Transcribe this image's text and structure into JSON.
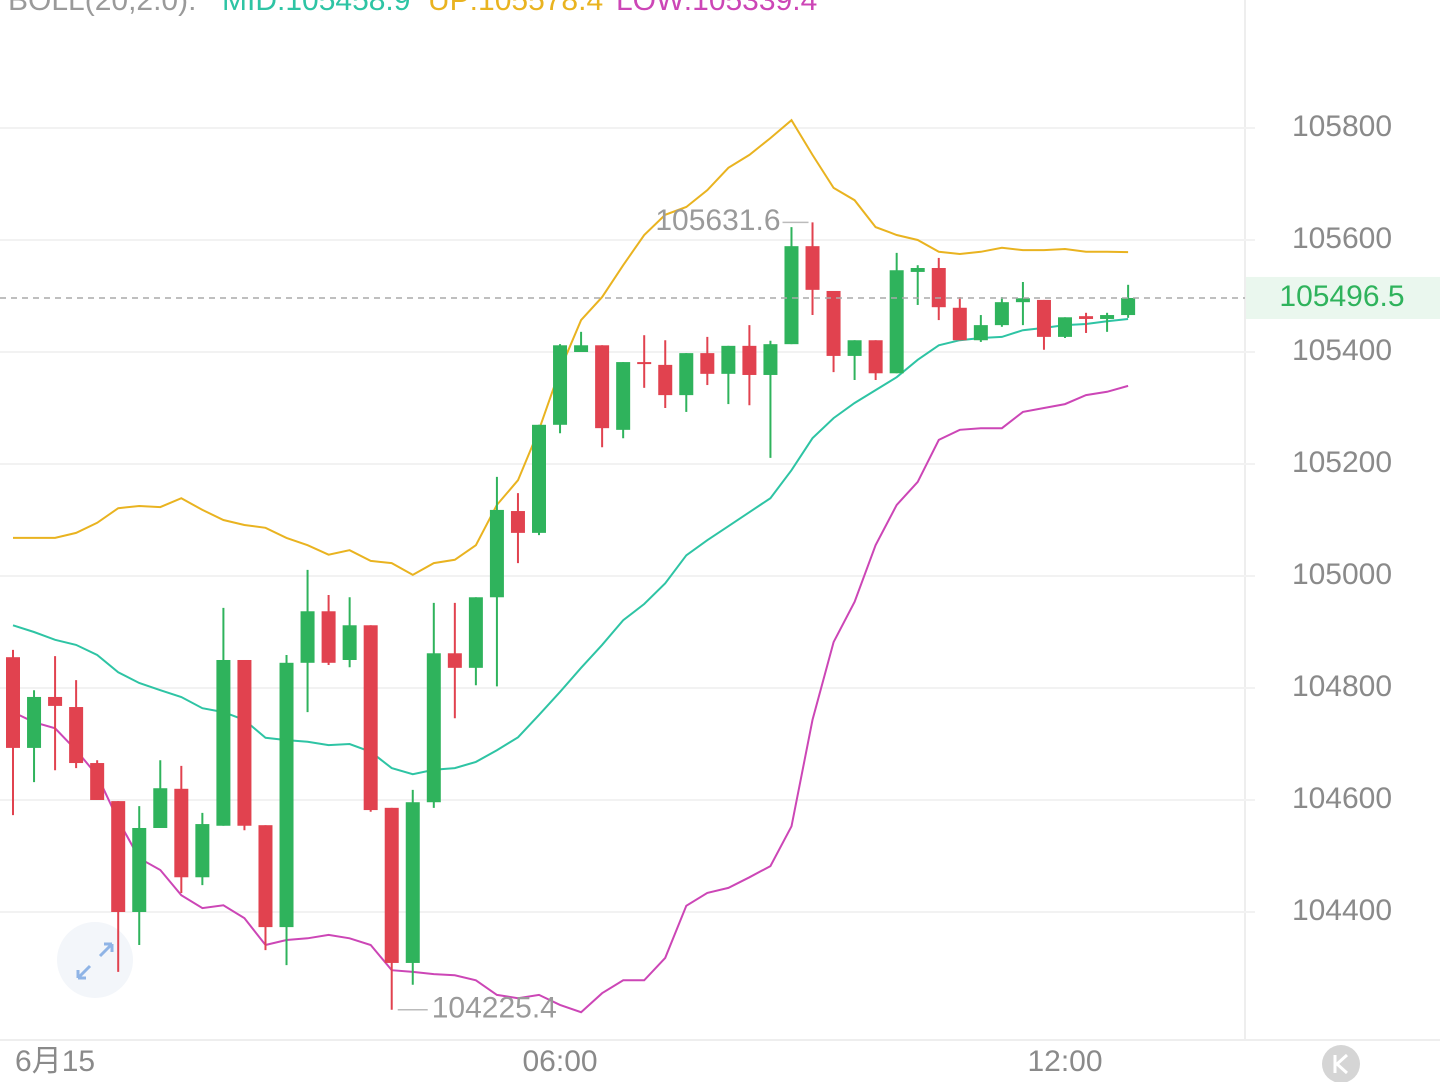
{
  "chart_data": {
    "type": "candlestick",
    "indicator": "BOLL(20,2.0):",
    "categories": [
      null,
      null,
      "6月15",
      null,
      null,
      null,
      null,
      null,
      null,
      null,
      null,
      null,
      null,
      null,
      null,
      null,
      null,
      null,
      null,
      null,
      null,
      null,
      null,
      null,
      null,
      null,
      "06:00",
      null,
      null,
      null,
      null,
      null,
      null,
      null,
      null,
      null,
      null,
      null,
      null,
      null,
      null,
      null,
      null,
      null,
      null,
      null,
      null,
      null,
      null,
      null,
      "12:00",
      null,
      null,
      null
    ],
    "open": [
      104855,
      104693,
      104784,
      104766,
      104666,
      104598,
      104400,
      104550,
      104620,
      104462,
      104554,
      104850,
      104555,
      104373,
      104845,
      104937,
      104850,
      104912,
      104586,
      104309,
      104596,
      104862,
      104836,
      104962,
      105116,
      105077,
      105270,
      105400,
      105412,
      105261,
      105382,
      105377,
      105323,
      105398,
      105361,
      105411,
      105359,
      105414,
      105589,
      105509,
      105393,
      105421,
      105362,
      105543,
      105550,
      105479,
      105421,
      105448,
      105489,
      105493,
      105427,
      105464,
      105459,
      105466
    ],
    "close": [
      104693,
      104784,
      104768,
      104666,
      104600,
      104400,
      104550,
      104621,
      104462,
      104557,
      104850,
      104554,
      104373,
      104845,
      104937,
      104845,
      104912,
      104582,
      104309,
      104596,
      104862,
      104836,
      104962,
      105118,
      105077,
      105270,
      105412,
      105412,
      105264,
      105382,
      105380,
      105323,
      105398,
      105361,
      105411,
      105359,
      105414,
      105589,
      105511,
      105393,
      105421,
      105362,
      105546,
      105550,
      105480,
      105421,
      105448,
      105489,
      105496,
      105427,
      105462,
      105459,
      105466,
      105496.5
    ],
    "high": [
      104868,
      104796,
      104857,
      104814,
      104671,
      104598,
      104589,
      104671,
      104661,
      104577,
      104943,
      104850,
      104555,
      104859,
      105011,
      104966,
      104962,
      104912,
      104586,
      104618,
      104952,
      104952,
      104962,
      105177,
      105148,
      105270,
      105414,
      105436,
      105412,
      105382,
      105430,
      105421,
      105398,
      105427,
      105411,
      105448,
      105420,
      105623,
      105631.6,
      105509,
      105421,
      105421,
      105577,
      105555,
      105568,
      105498,
      105466,
      105498,
      105525,
      105493,
      105462,
      105470,
      105470,
      105520
    ],
    "low": [
      104573,
      104632,
      104653,
      104657,
      104600,
      104293,
      104341,
      104550,
      104434,
      104448,
      104554,
      104546,
      104332,
      104305,
      104757,
      104841,
      104837,
      104579,
      104225.4,
      104270,
      104586,
      104746,
      104805,
      104803,
      105023,
      105073,
      105255,
      105400,
      105230,
      105246,
      105336,
      105300,
      105293,
      105341,
      105307,
      105305,
      105211,
      105414,
      105466,
      105364,
      105350,
      105350,
      105362,
      105484,
      105457,
      105421,
      105418,
      105445,
      105448,
      105404,
      105425,
      105434,
      105436,
      105461
    ],
    "up_color": "#2fb35c",
    "down_color": "#e1424f",
    "series": [
      {
        "label": "MID:105458.9",
        "color": "#2ec4a4",
        "values": [
          104912,
          104900,
          104886,
          104877,
          104859,
          104828,
          104809,
          104796,
          104784,
          104764,
          104757,
          104743,
          104711,
          104707,
          104704,
          104698,
          104700,
          104686,
          104657,
          104646,
          104654,
          104657,
          104668,
          104689,
          104712,
          104752,
          104793,
          104836,
          104877,
          104921,
          104950,
          104987,
          105037,
          105064,
          105089,
          105114,
          105139,
          105189,
          105246,
          105282,
          105309,
          105332,
          105355,
          105386,
          105412,
          105421,
          105425,
          105427,
          105439,
          105443,
          105448,
          105450,
          105455,
          105458.9
        ]
      },
      {
        "label": "UP:105578.4",
        "color": "#e9b320",
        "values": [
          105068,
          105068,
          105068,
          105077,
          105095,
          105121,
          105125,
          105123,
          105139,
          105118,
          105100,
          105091,
          105086,
          105068,
          105055,
          105038,
          105046,
          105027,
          105023,
          105002,
          105023,
          105029,
          105055,
          105127,
          105171,
          105261,
          105368,
          105457,
          105498,
          105555,
          105609,
          105645,
          105659,
          105689,
          105729,
          105752,
          105782,
          105814,
          105752,
          105693,
          105671,
          105623,
          105609,
          105600,
          105579,
          105575,
          105579,
          105586,
          105582,
          105582,
          105584,
          105579,
          105579,
          105578.4
        ]
      },
      {
        "label": "LOW:105339.4",
        "color": "#cc46b6",
        "values": [
          104757,
          104739,
          104728,
          104689,
          104644,
          104564,
          104496,
          104475,
          104430,
          104407,
          104412,
          104389,
          104341,
          104350,
          104353,
          104359,
          104353,
          104341,
          104296,
          104293,
          104289,
          104287,
          104278,
          104252,
          104246,
          104252,
          104234,
          104221,
          104255,
          104278,
          104278,
          104318,
          104411,
          104434,
          104443,
          104462,
          104482,
          104553,
          104743,
          104882,
          104954,
          105055,
          105127,
          105168,
          105243,
          105261,
          105264,
          105264,
          105293,
          105300,
          105307,
          105323,
          105329,
          105339.4
        ]
      }
    ],
    "ylim": [
      104171.4,
      106028.6
    ],
    "yticks": [
      104400,
      104600,
      104800,
      105000,
      105200,
      105400,
      105600,
      105800
    ],
    "grid": true
  }
}
